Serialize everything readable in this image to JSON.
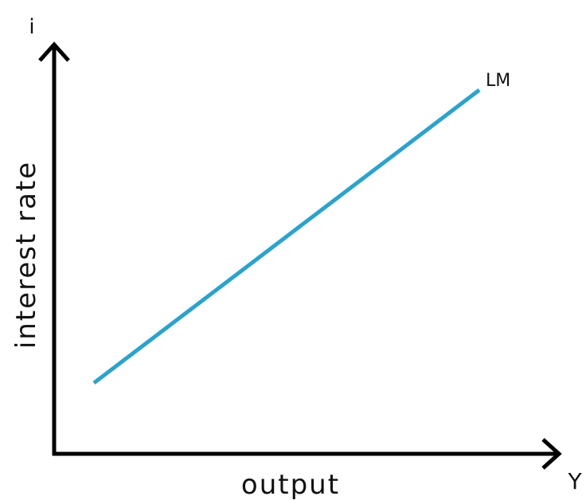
{
  "axes": {
    "y": {
      "symbol": "i",
      "label": "interest rate"
    },
    "x": {
      "symbol": "Y",
      "label": "output"
    }
  },
  "curve": {
    "label": "LM"
  }
}
